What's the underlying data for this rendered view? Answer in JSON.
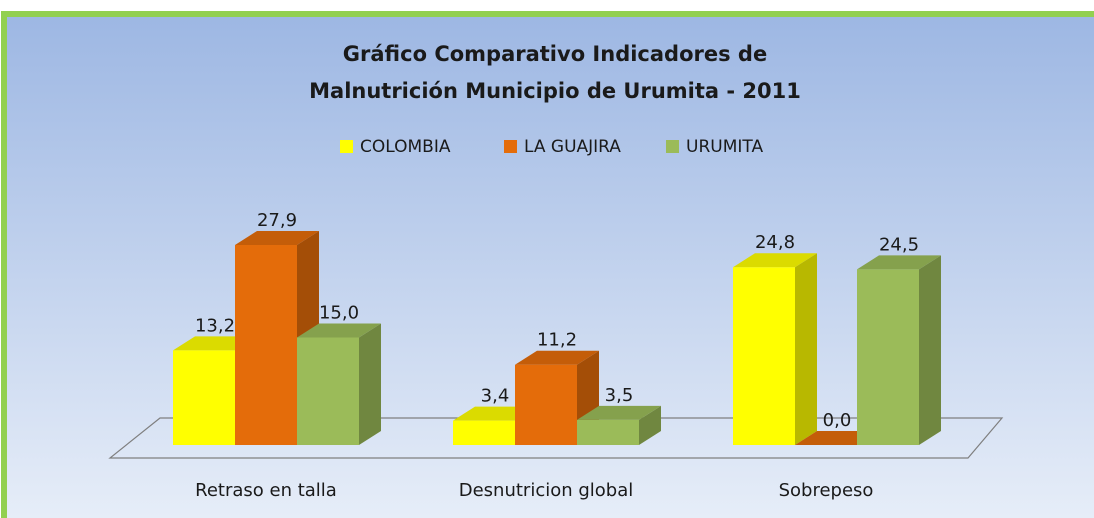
{
  "chart_data": {
    "type": "bar3d",
    "title": "Gráfico Comparativo Indicadores de Malnutrición Municipio de Urumita - 2011",
    "categories": [
      "Retraso en talla",
      "Desnutricion global",
      "Sobrepeso"
    ],
    "series": [
      {
        "name": "COLOMBIA",
        "color": "#ffff00",
        "values": [
          13.2,
          3.4,
          24.8
        ],
        "value_labels": [
          "13,2",
          "3,4",
          "24,8"
        ]
      },
      {
        "name": "LA GUAJIRA",
        "color": "#e46c0a",
        "values": [
          27.9,
          11.2,
          0.0
        ],
        "value_labels": [
          "27,9",
          "11,2",
          "0,0"
        ]
      },
      {
        "name": "URUMITA",
        "color": "#9bbb59",
        "values": [
          15.0,
          3.5,
          24.5
        ],
        "value_labels": [
          "15,0",
          "3,5",
          "24,5"
        ]
      }
    ],
    "legend": "top"
  }
}
